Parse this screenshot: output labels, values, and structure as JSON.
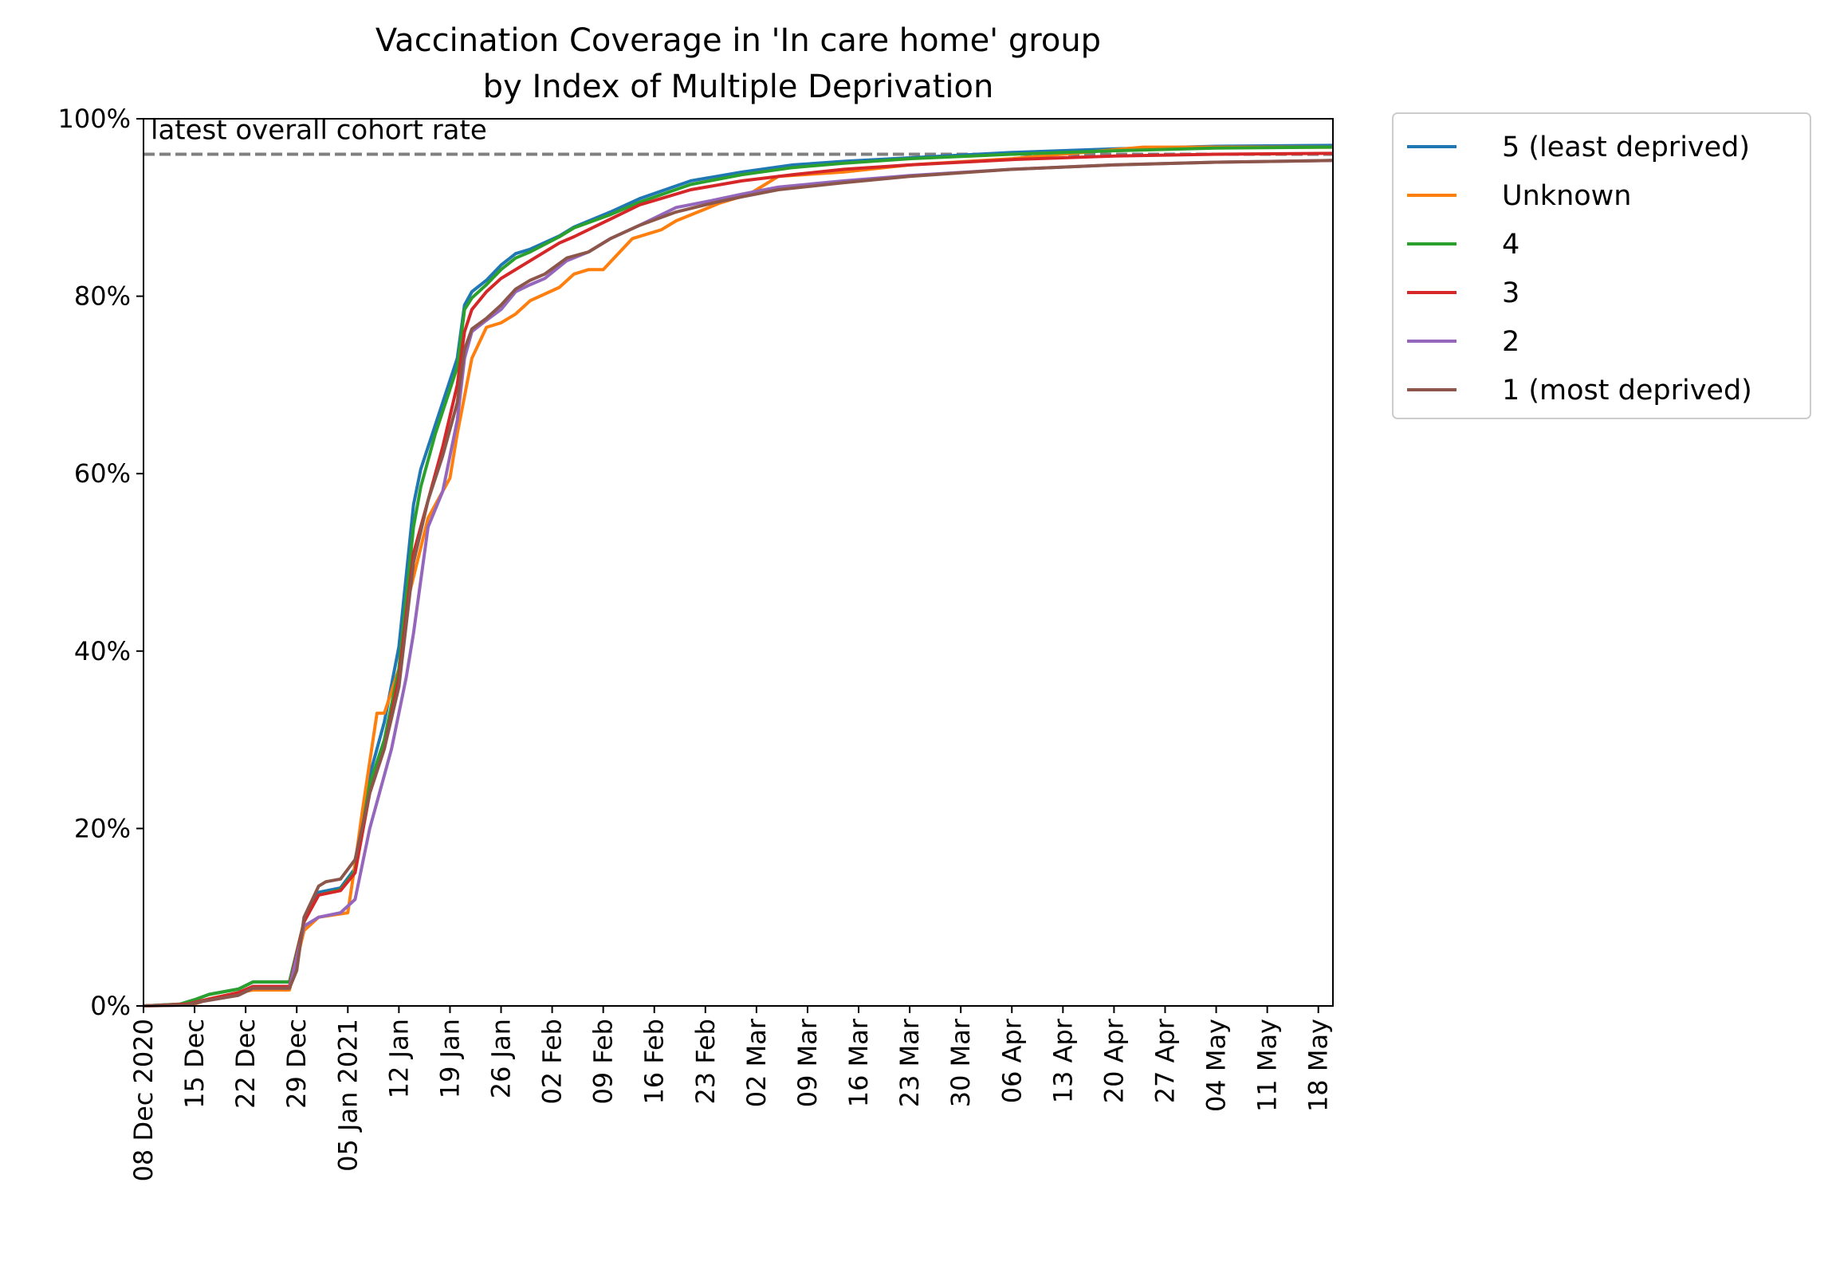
{
  "chart_data": {
    "type": "line",
    "title": "Vaccination Coverage in 'In care home' group",
    "subtitle": "by Index of Multiple Deprivation",
    "xlabel": "",
    "ylabel": "",
    "x_range": [
      "2020-12-08",
      "2021-05-20"
    ],
    "ylim": [
      0,
      100
    ],
    "y_ticks": [
      0,
      20,
      40,
      60,
      80,
      100
    ],
    "y_tick_labels": [
      "0%",
      "20%",
      "40%",
      "60%",
      "80%",
      "100%"
    ],
    "x_ticks": [
      {
        "date": "2020-12-08",
        "label": "08 Dec 2020"
      },
      {
        "date": "2020-12-15",
        "label": "15 Dec"
      },
      {
        "date": "2020-12-22",
        "label": "22 Dec"
      },
      {
        "date": "2020-12-29",
        "label": "29 Dec"
      },
      {
        "date": "2021-01-05",
        "label": "05 Jan 2021"
      },
      {
        "date": "2021-01-12",
        "label": "12 Jan"
      },
      {
        "date": "2021-01-19",
        "label": "19 Jan"
      },
      {
        "date": "2021-01-26",
        "label": "26 Jan"
      },
      {
        "date": "2021-02-02",
        "label": "02 Feb"
      },
      {
        "date": "2021-02-09",
        "label": "09 Feb"
      },
      {
        "date": "2021-02-16",
        "label": "16 Feb"
      },
      {
        "date": "2021-02-23",
        "label": "23 Feb"
      },
      {
        "date": "2021-03-02",
        "label": "02 Mar"
      },
      {
        "date": "2021-03-09",
        "label": "09 Mar"
      },
      {
        "date": "2021-03-16",
        "label": "16 Mar"
      },
      {
        "date": "2021-03-23",
        "label": "23 Mar"
      },
      {
        "date": "2021-03-30",
        "label": "30 Mar"
      },
      {
        "date": "2021-04-06",
        "label": "06 Apr"
      },
      {
        "date": "2021-04-13",
        "label": "13 Apr"
      },
      {
        "date": "2021-04-20",
        "label": "20 Apr"
      },
      {
        "date": "2021-04-27",
        "label": "27 Apr"
      },
      {
        "date": "2021-05-04",
        "label": "04 May"
      },
      {
        "date": "2021-05-11",
        "label": "11 May"
      },
      {
        "date": "2021-05-18",
        "label": "18 May"
      }
    ],
    "grid": false,
    "legend_position": "outside top-right",
    "reference_line": {
      "label": "latest overall cohort rate",
      "value": 96,
      "color": "#808080",
      "style": "dashed"
    },
    "series": [
      {
        "name": "5 (least deprived)",
        "color": "#1f77b4",
        "points": [
          [
            "2020-12-08",
            0
          ],
          [
            "2020-12-13",
            0.2
          ],
          [
            "2020-12-15",
            0.7
          ],
          [
            "2020-12-17",
            1.3
          ],
          [
            "2020-12-21",
            1.9
          ],
          [
            "2020-12-23",
            2.7
          ],
          [
            "2020-12-28",
            2.7
          ],
          [
            "2020-12-30",
            9.5
          ],
          [
            "2021-01-01",
            12.8
          ],
          [
            "2021-01-04",
            13.3
          ],
          [
            "2021-01-06",
            15.5
          ],
          [
            "2021-01-08",
            26
          ],
          [
            "2021-01-10",
            32
          ],
          [
            "2021-01-12",
            40.5
          ],
          [
            "2021-01-14",
            56.5
          ],
          [
            "2021-01-15",
            60.5
          ],
          [
            "2021-01-17",
            65.5
          ],
          [
            "2021-01-20",
            73
          ],
          [
            "2021-01-21",
            79
          ],
          [
            "2021-01-22",
            80.5
          ],
          [
            "2021-01-24",
            81.8
          ],
          [
            "2021-01-26",
            83.5
          ],
          [
            "2021-01-28",
            84.8
          ],
          [
            "2021-01-30",
            85.3
          ],
          [
            "2021-02-03",
            86.8
          ],
          [
            "2021-02-05",
            87.8
          ],
          [
            "2021-02-10",
            89.5
          ],
          [
            "2021-02-14",
            91
          ],
          [
            "2021-02-21",
            93
          ],
          [
            "2021-02-28",
            94
          ],
          [
            "2021-03-07",
            94.8
          ],
          [
            "2021-03-14",
            95.2
          ],
          [
            "2021-03-23",
            95.6
          ],
          [
            "2021-04-06",
            96.2
          ],
          [
            "2021-04-20",
            96.6
          ],
          [
            "2021-05-04",
            96.9
          ],
          [
            "2021-05-20",
            97
          ]
        ]
      },
      {
        "name": "Unknown",
        "color": "#ff7f0e",
        "points": [
          [
            "2020-12-08",
            0
          ],
          [
            "2020-12-15",
            0.2
          ],
          [
            "2020-12-17",
            0.8
          ],
          [
            "2020-12-21",
            1.5
          ],
          [
            "2020-12-23",
            1.8
          ],
          [
            "2020-12-28",
            1.8
          ],
          [
            "2020-12-30",
            8.5
          ],
          [
            "2021-01-01",
            10
          ],
          [
            "2021-01-05",
            10.5
          ],
          [
            "2021-01-06",
            16
          ],
          [
            "2021-01-07",
            22
          ],
          [
            "2021-01-09",
            33
          ],
          [
            "2021-01-10",
            33
          ],
          [
            "2021-01-12",
            38
          ],
          [
            "2021-01-13",
            45
          ],
          [
            "2021-01-16",
            55
          ],
          [
            "2021-01-19",
            59.5
          ],
          [
            "2021-01-20",
            64.5
          ],
          [
            "2021-01-22",
            73
          ],
          [
            "2021-01-24",
            76.5
          ],
          [
            "2021-01-26",
            77
          ],
          [
            "2021-01-28",
            78
          ],
          [
            "2021-01-30",
            79.5
          ],
          [
            "2021-02-03",
            81
          ],
          [
            "2021-02-05",
            82.5
          ],
          [
            "2021-02-07",
            83
          ],
          [
            "2021-02-09",
            83
          ],
          [
            "2021-02-13",
            86.5
          ],
          [
            "2021-02-17",
            87.5
          ],
          [
            "2021-02-19",
            88.5
          ],
          [
            "2021-02-22",
            89.5
          ],
          [
            "2021-02-25",
            90.5
          ],
          [
            "2021-03-01",
            91.5
          ],
          [
            "2021-03-03",
            92.5
          ],
          [
            "2021-03-05",
            93.5
          ],
          [
            "2021-03-14",
            94
          ],
          [
            "2021-03-23",
            94.8
          ],
          [
            "2021-04-06",
            95.5
          ],
          [
            "2021-04-24",
            96.8
          ],
          [
            "2021-05-20",
            96.8
          ]
        ]
      },
      {
        "name": "4",
        "color": "#2ca02c",
        "points": [
          [
            "2020-12-08",
            0
          ],
          [
            "2020-12-13",
            0.2
          ],
          [
            "2020-12-15",
            0.7
          ],
          [
            "2020-12-17",
            1.3
          ],
          [
            "2020-12-21",
            1.9
          ],
          [
            "2020-12-23",
            2.7
          ],
          [
            "2020-12-28",
            2.7
          ],
          [
            "2020-12-30",
            9.5
          ],
          [
            "2021-01-01",
            12.5
          ],
          [
            "2021-01-04",
            13.1
          ],
          [
            "2021-01-06",
            15.2
          ],
          [
            "2021-01-08",
            25
          ],
          [
            "2021-01-10",
            30
          ],
          [
            "2021-01-12",
            38
          ],
          [
            "2021-01-14",
            54
          ],
          [
            "2021-01-15",
            58.5
          ],
          [
            "2021-01-17",
            64.5
          ],
          [
            "2021-01-20",
            72
          ],
          [
            "2021-01-21",
            78.5
          ],
          [
            "2021-01-22",
            79.8
          ],
          [
            "2021-01-24",
            81.3
          ],
          [
            "2021-01-26",
            83
          ],
          [
            "2021-01-28",
            84.3
          ],
          [
            "2021-01-30",
            85
          ],
          [
            "2021-02-03",
            86.7
          ],
          [
            "2021-02-05",
            87.7
          ],
          [
            "2021-02-10",
            89.2
          ],
          [
            "2021-02-14",
            90.6
          ],
          [
            "2021-02-21",
            92.6
          ],
          [
            "2021-02-28",
            93.7
          ],
          [
            "2021-03-07",
            94.5
          ],
          [
            "2021-03-14",
            95
          ],
          [
            "2021-03-23",
            95.5
          ],
          [
            "2021-04-06",
            96
          ],
          [
            "2021-04-20",
            96.4
          ],
          [
            "2021-05-04",
            96.7
          ],
          [
            "2021-05-20",
            96.8
          ]
        ]
      },
      {
        "name": "3",
        "color": "#d62728",
        "points": [
          [
            "2020-12-08",
            0
          ],
          [
            "2020-12-14",
            0.2
          ],
          [
            "2020-12-16",
            0.6
          ],
          [
            "2020-12-21",
            1.5
          ],
          [
            "2020-12-23",
            2.2
          ],
          [
            "2020-12-28",
            2.2
          ],
          [
            "2020-12-30",
            9.5
          ],
          [
            "2021-01-01",
            12.5
          ],
          [
            "2021-01-04",
            13
          ],
          [
            "2021-01-06",
            15
          ],
          [
            "2021-01-08",
            24
          ],
          [
            "2021-01-10",
            29
          ],
          [
            "2021-01-12",
            37
          ],
          [
            "2021-01-14",
            51
          ],
          [
            "2021-01-16",
            57
          ],
          [
            "2021-01-18",
            63
          ],
          [
            "2021-01-20",
            70
          ],
          [
            "2021-01-21",
            76
          ],
          [
            "2021-01-22",
            78.5
          ],
          [
            "2021-01-24",
            80.5
          ],
          [
            "2021-01-26",
            82
          ],
          [
            "2021-01-28",
            83
          ],
          [
            "2021-01-30",
            84
          ],
          [
            "2021-02-03",
            86
          ],
          [
            "2021-02-05",
            86.7
          ],
          [
            "2021-02-10",
            88.7
          ],
          [
            "2021-02-14",
            90.3
          ],
          [
            "2021-02-21",
            92
          ],
          [
            "2021-02-28",
            93
          ],
          [
            "2021-03-07",
            93.7
          ],
          [
            "2021-03-14",
            94.3
          ],
          [
            "2021-03-23",
            94.8
          ],
          [
            "2021-04-06",
            95.4
          ],
          [
            "2021-04-20",
            95.8
          ],
          [
            "2021-05-04",
            96
          ],
          [
            "2021-05-20",
            96.1
          ]
        ]
      },
      {
        "name": "2",
        "color": "#9467bd",
        "points": [
          [
            "2020-12-08",
            0
          ],
          [
            "2020-12-14",
            0.1
          ],
          [
            "2020-12-16",
            0.5
          ],
          [
            "2020-12-21",
            1.2
          ],
          [
            "2020-12-23",
            2
          ],
          [
            "2020-12-28",
            2
          ],
          [
            "2020-12-30",
            9
          ],
          [
            "2021-01-01",
            10
          ],
          [
            "2021-01-04",
            10.5
          ],
          [
            "2021-01-06",
            12
          ],
          [
            "2021-01-07",
            16
          ],
          [
            "2021-01-08",
            20
          ],
          [
            "2021-01-10",
            26
          ],
          [
            "2021-01-11",
            29
          ],
          [
            "2021-01-13",
            37
          ],
          [
            "2021-01-14",
            42
          ],
          [
            "2021-01-16",
            54
          ],
          [
            "2021-01-18",
            58
          ],
          [
            "2021-01-20",
            66
          ],
          [
            "2021-01-21",
            73
          ],
          [
            "2021-01-22",
            76
          ],
          [
            "2021-01-24",
            77.3
          ],
          [
            "2021-01-26",
            78.5
          ],
          [
            "2021-01-28",
            80.5
          ],
          [
            "2021-01-30",
            81.3
          ],
          [
            "2021-02-01",
            82
          ],
          [
            "2021-02-04",
            84
          ],
          [
            "2021-02-07",
            85
          ],
          [
            "2021-02-10",
            86.5
          ],
          [
            "2021-02-14",
            88
          ],
          [
            "2021-02-19",
            90
          ],
          [
            "2021-02-24",
            90.8
          ],
          [
            "2021-02-28",
            91.5
          ],
          [
            "2021-03-05",
            92.3
          ],
          [
            "2021-03-14",
            93
          ],
          [
            "2021-03-23",
            93.6
          ],
          [
            "2021-04-06",
            94.3
          ],
          [
            "2021-04-20",
            94.8
          ],
          [
            "2021-05-04",
            95.1
          ],
          [
            "2021-05-20",
            95.3
          ]
        ]
      },
      {
        "name": "1 (most deprived)",
        "color": "#8c564b",
        "points": [
          [
            "2020-12-08",
            0
          ],
          [
            "2020-12-14",
            0.1
          ],
          [
            "2020-12-16",
            0.5
          ],
          [
            "2020-12-21",
            1.2
          ],
          [
            "2020-12-23",
            2
          ],
          [
            "2020-12-28",
            2
          ],
          [
            "2020-12-29",
            4
          ],
          [
            "2020-12-30",
            10
          ],
          [
            "2021-01-01",
            13.5
          ],
          [
            "2021-01-02",
            14
          ],
          [
            "2021-01-04",
            14.3
          ],
          [
            "2021-01-06",
            16.5
          ],
          [
            "2021-01-08",
            24
          ],
          [
            "2021-01-10",
            29
          ],
          [
            "2021-01-12",
            36
          ],
          [
            "2021-01-14",
            50
          ],
          [
            "2021-01-16",
            57
          ],
          [
            "2021-01-18",
            62
          ],
          [
            "2021-01-20",
            68
          ],
          [
            "2021-01-21",
            74
          ],
          [
            "2021-01-22",
            76.3
          ],
          [
            "2021-01-24",
            77.5
          ],
          [
            "2021-01-26",
            79
          ],
          [
            "2021-01-28",
            80.8
          ],
          [
            "2021-01-30",
            81.8
          ],
          [
            "2021-02-01",
            82.5
          ],
          [
            "2021-02-04",
            84.3
          ],
          [
            "2021-02-07",
            85
          ],
          [
            "2021-02-10",
            86.5
          ],
          [
            "2021-02-14",
            88
          ],
          [
            "2021-02-19",
            89.5
          ],
          [
            "2021-02-24",
            90.5
          ],
          [
            "2021-02-28",
            91.2
          ],
          [
            "2021-03-05",
            92
          ],
          [
            "2021-03-14",
            92.8
          ],
          [
            "2021-03-23",
            93.5
          ],
          [
            "2021-04-06",
            94.3
          ],
          [
            "2021-04-20",
            94.8
          ],
          [
            "2021-05-04",
            95.1
          ],
          [
            "2021-05-20",
            95.3
          ]
        ]
      }
    ]
  }
}
